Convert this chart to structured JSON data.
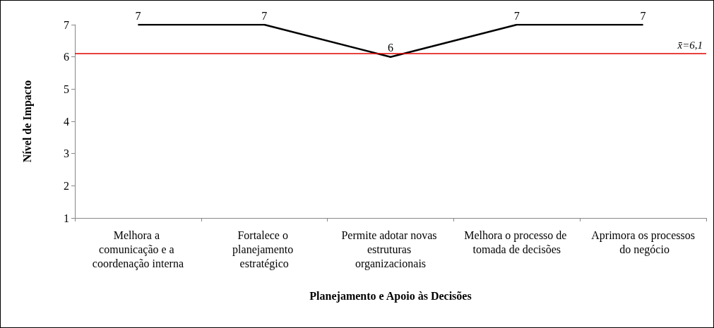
{
  "chart_data": {
    "type": "line",
    "xlabel": "Planejamento e Apoio às Decisões",
    "ylabel": "Nível de Impacto",
    "categories": [
      "Melhora a comunicação e a coordenação interna",
      "Fortalece o planejamento estratégico",
      "Permite adotar novas estruturas organizacionais",
      "Melhora o processo de tomada de decisões",
      "Aprimora os processos do negócio"
    ],
    "series": [
      {
        "color": "#000000",
        "values": [
          7,
          7,
          6,
          7,
          7
        ]
      }
    ],
    "ylim": [
      1,
      7
    ],
    "yticks": [
      1,
      2,
      3,
      4,
      5,
      6,
      7
    ],
    "grid": false,
    "marker": "none",
    "line_style": "solid",
    "data_labels": true,
    "ref_lines": [
      {
        "axis": "y",
        "value": 6.1,
        "label": "x̄=6,1",
        "color": "#e00000"
      }
    ]
  }
}
